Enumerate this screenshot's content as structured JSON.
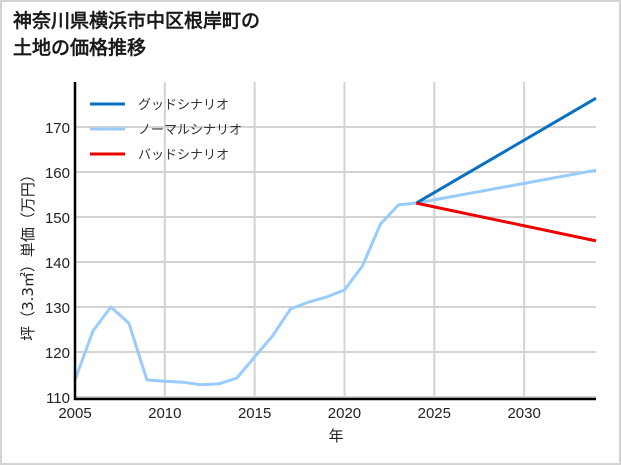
{
  "title_line1": "神奈川県横浜市中区根岸町の",
  "title_line2": "土地の価格推移",
  "chart_data": {
    "type": "line",
    "title": "神奈川県横浜市中区根岸町の土地の価格推移",
    "xlabel": "年",
    "ylabel": "坪（3.3㎡）単価（万円）",
    "xlim": [
      2005,
      2034
    ],
    "ylim": [
      110,
      180
    ],
    "xticks": [
      2005,
      2010,
      2015,
      2020,
      2025,
      2030
    ],
    "yticks": [
      110,
      120,
      130,
      140,
      150,
      160,
      170
    ],
    "grid": true,
    "legend_position": "upper left",
    "series": [
      {
        "name": "グッドシナリオ",
        "color": "#0a70c2",
        "x": [
          2024,
          2034
        ],
        "values": [
          153.1,
          176.4
        ]
      },
      {
        "name": "ノーマルシナリオ",
        "color": "#99ccfc",
        "x": [
          2005,
          2006,
          2007,
          2008,
          2009,
          2010,
          2011,
          2012,
          2013,
          2014,
          2015,
          2016,
          2017,
          2018,
          2019,
          2020,
          2021,
          2022,
          2023,
          2024,
          2034
        ],
        "values": [
          113.8,
          124.7,
          130.0,
          126.4,
          113.8,
          113.5,
          113.3,
          112.7,
          112.9,
          114.2,
          118.9,
          123.6,
          129.6,
          131.1,
          132.2,
          133.8,
          139.1,
          148.4,
          152.7,
          153.1,
          160.4
        ]
      },
      {
        "name": "バッドシナリオ",
        "color": "#ee0000",
        "x": [
          2024,
          2034
        ],
        "values": [
          153.1,
          144.7
        ]
      }
    ]
  }
}
